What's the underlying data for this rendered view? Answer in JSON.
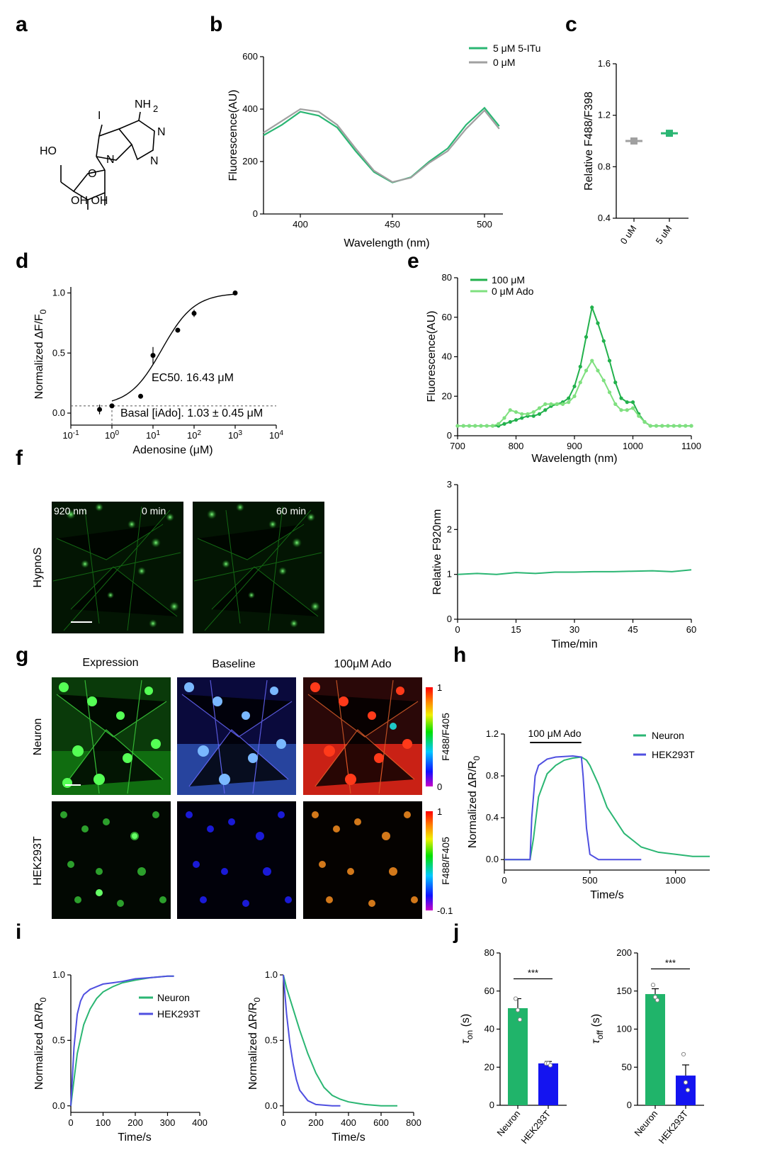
{
  "panel_labels": {
    "a": "a",
    "b": "b",
    "c": "c",
    "d": "d",
    "e": "e",
    "f": "f",
    "g": "g",
    "h": "h",
    "i": "i",
    "j": "j"
  },
  "colors": {
    "green": "#2bb673",
    "green_bright": "#22b14c",
    "green_light": "#7fe07f",
    "gray": "#a0a0a0",
    "blue": "#4f4fe0",
    "blue_bar": "#1414f0",
    "bar_green": "#20b46a"
  },
  "structure": {
    "labels": {
      "i": "I",
      "nh2": "NH",
      "nh2_sub": "2",
      "n1": "N",
      "n2": "N",
      "n3": "N",
      "ho": "HO",
      "o": "O",
      "ohoh": "OH OH"
    }
  },
  "chart_data": [
    {
      "panel": "b",
      "type": "line",
      "xlabel": "Wavelength (nm)",
      "ylabel": "Fluorescence(AU)",
      "xlim": [
        380,
        510
      ],
      "ylim": [
        0,
        600
      ],
      "x_ticks": [
        400,
        450,
        500
      ],
      "y_ticks": [
        0,
        200,
        400,
        600
      ],
      "legend_placement": "top-right",
      "series": [
        {
          "name": "5  μM 5-ITu",
          "color": "#2bb673",
          "x": [
            380,
            390,
            400,
            410,
            420,
            430,
            440,
            450,
            460,
            470,
            480,
            490,
            500,
            508
          ],
          "values": [
            300,
            340,
            390,
            375,
            330,
            240,
            160,
            120,
            140,
            200,
            250,
            340,
            405,
            335
          ]
        },
        {
          "name": "0   μM",
          "color": "#a0a0a0",
          "x": [
            380,
            390,
            400,
            410,
            420,
            430,
            440,
            450,
            460,
            470,
            480,
            490,
            500,
            508
          ],
          "values": [
            310,
            355,
            400,
            390,
            340,
            250,
            165,
            122,
            138,
            195,
            240,
            325,
            395,
            325
          ]
        }
      ]
    },
    {
      "panel": "c",
      "type": "scatter",
      "ylabel": "Relative F488/F398",
      "ylim": [
        0.4,
        1.6
      ],
      "y_ticks": [
        0.4,
        0.8,
        1.2,
        1.6
      ],
      "categories": [
        "0 uM",
        "5 uM"
      ],
      "series": [
        {
          "values": [
            1.0,
            1.06
          ],
          "colors": [
            "#a0a0a0",
            "#2bb673"
          ]
        }
      ]
    },
    {
      "panel": "d",
      "type": "scatter",
      "xlabel": "Adenosine (μM)",
      "ylabel": "Normalized ΔF/F",
      "ylabel_sub": "0",
      "x_scale": "log",
      "xlim": [
        0.1,
        10000
      ],
      "x_ticks": [
        {
          "base": "10",
          "exp": "-1"
        },
        {
          "base": "10",
          "exp": "0"
        },
        {
          "base": "10",
          "exp": "1"
        },
        {
          "base": "10",
          "exp": "2"
        },
        {
          "base": "10",
          "exp": "3"
        },
        {
          "base": "10",
          "exp": "4"
        }
      ],
      "ylim": [
        -0.1,
        1.05
      ],
      "y_ticks": [
        0.0,
        0.5,
        1.0
      ],
      "x": [
        0.5,
        1,
        5,
        10,
        40,
        100,
        1000
      ],
      "values": [
        0.03,
        0.06,
        0.14,
        0.48,
        0.69,
        0.83,
        1.0
      ],
      "errors": [
        0.04,
        0.01,
        0.01,
        0.07,
        0.02,
        0.03,
        0.0
      ],
      "ec50": 16.43,
      "annotations": [
        "EC50. 16.43 μM",
        "Basal [iAdo]. 1.03 ± 0.45 μM"
      ]
    },
    {
      "panel": "e",
      "type": "line",
      "xlabel": "Wavelength (nm)",
      "ylabel": "Fluorescence(AU)",
      "xlim": [
        700,
        1100
      ],
      "ylim": [
        0,
        80
      ],
      "x_ticks": [
        700,
        800,
        900,
        1000,
        1100
      ],
      "y_ticks": [
        0,
        20,
        40,
        60,
        80
      ],
      "legend_placement": "top-left",
      "x": [
        700,
        710,
        720,
        730,
        740,
        750,
        760,
        770,
        780,
        790,
        800,
        810,
        820,
        830,
        840,
        850,
        860,
        870,
        880,
        890,
        900,
        910,
        920,
        930,
        940,
        950,
        960,
        970,
        980,
        990,
        1000,
        1010,
        1020,
        1030,
        1040,
        1050,
        1060,
        1070,
        1080,
        1090,
        1100
      ],
      "series": [
        {
          "name": "100 μM",
          "color": "#22b14c",
          "values": [
            5,
            5,
            5,
            5,
            5,
            5,
            5,
            5,
            6,
            7,
            8,
            9,
            10,
            10,
            11,
            13,
            15,
            16,
            17,
            19,
            25,
            35,
            50,
            65,
            57,
            48,
            38,
            27,
            19,
            17,
            17,
            11,
            7,
            5,
            5,
            5,
            5,
            5,
            5,
            5,
            5
          ]
        },
        {
          "name": "0     μM Ado",
          "color": "#7fe07f",
          "values": [
            5,
            5,
            5,
            5,
            5,
            5,
            5,
            6,
            9,
            13,
            12,
            11,
            11,
            12,
            14,
            16,
            16,
            16,
            16,
            17,
            20,
            27,
            33,
            38,
            33,
            28,
            22,
            16,
            13,
            13,
            14,
            10,
            7,
            5,
            5,
            5,
            5,
            5,
            5,
            5,
            5
          ]
        }
      ]
    },
    {
      "panel": "f",
      "type": "line",
      "xlabel": "Time/min",
      "ylabel": "Relative F920nm",
      "xlim": [
        0,
        60
      ],
      "ylim": [
        0,
        3
      ],
      "x_ticks": [
        0,
        15,
        30,
        45,
        60
      ],
      "y_ticks": [
        0,
        1,
        2,
        3
      ],
      "x": [
        0,
        5,
        10,
        15,
        20,
        25,
        30,
        35,
        40,
        45,
        50,
        55,
        60
      ],
      "values": [
        1.0,
        1.02,
        1.0,
        1.04,
        1.02,
        1.05,
        1.05,
        1.06,
        1.06,
        1.07,
        1.08,
        1.06,
        1.1
      ],
      "color": "#2bb673"
    },
    {
      "panel": "h",
      "type": "line",
      "xlabel": "Time/s",
      "ylabel": "Normalized ΔR/R",
      "ylabel_sub": "0",
      "xlim": [
        0,
        1200
      ],
      "ylim": [
        -0.1,
        1.2
      ],
      "x_ticks": [
        0,
        500,
        1000
      ],
      "y_ticks": [
        0.0,
        0.4,
        0.8,
        1.2
      ],
      "stimulus": "100 μM Ado",
      "stimulus_range": [
        150,
        450
      ],
      "legend_placement": "top-right",
      "series": [
        {
          "name": "Neuron",
          "color": "#2bb673",
          "x": [
            0,
            100,
            150,
            170,
            200,
            250,
            300,
            350,
            400,
            450,
            480,
            500,
            550,
            600,
            700,
            800,
            900,
            1000,
            1100,
            1200
          ],
          "values": [
            0.0,
            0.0,
            0.0,
            0.2,
            0.6,
            0.82,
            0.9,
            0.95,
            0.97,
            0.98,
            0.95,
            0.9,
            0.72,
            0.5,
            0.25,
            0.12,
            0.07,
            0.05,
            0.03,
            0.03
          ]
        },
        {
          "name": "HEK293T",
          "color": "#4f4fe0",
          "x": [
            0,
            100,
            150,
            160,
            180,
            200,
            250,
            300,
            400,
            450,
            460,
            480,
            500,
            550,
            600,
            700,
            800
          ],
          "values": [
            0.0,
            0.0,
            0.0,
            0.4,
            0.8,
            0.9,
            0.96,
            0.98,
            0.99,
            0.98,
            0.8,
            0.3,
            0.05,
            0.0,
            0.0,
            0.0,
            0.0
          ]
        }
      ]
    },
    {
      "panel": "i_left",
      "type": "line",
      "xlabel": "Time/s",
      "ylabel": "Normalized ΔR/R",
      "ylabel_sub": "0",
      "xlim": [
        0,
        400
      ],
      "ylim": [
        -0.05,
        1.0
      ],
      "x_ticks": [
        0,
        100,
        200,
        300,
        400
      ],
      "y_ticks": [
        0.0,
        0.5,
        1.0
      ],
      "legend_placement": "center-right",
      "series": [
        {
          "name": "Neuron",
          "color": "#2bb673",
          "x": [
            0,
            10,
            20,
            40,
            60,
            80,
            100,
            130,
            160,
            200,
            250,
            300,
            320
          ],
          "values": [
            0.0,
            0.2,
            0.4,
            0.62,
            0.74,
            0.82,
            0.87,
            0.91,
            0.94,
            0.96,
            0.98,
            0.99,
            0.99
          ]
        },
        {
          "name": "HEK293T",
          "color": "#4f4fe0",
          "x": [
            0,
            10,
            20,
            30,
            40,
            60,
            80,
            100,
            130,
            160,
            200,
            250,
            300,
            320
          ],
          "values": [
            0.0,
            0.45,
            0.7,
            0.8,
            0.85,
            0.89,
            0.91,
            0.93,
            0.94,
            0.95,
            0.97,
            0.98,
            0.99,
            0.99
          ]
        }
      ]
    },
    {
      "panel": "i_right",
      "type": "line",
      "xlabel": "Time/s",
      "ylim": [
        -0.05,
        1.0
      ],
      "ylabel": "Normalized ΔR/R",
      "ylabel_sub": "0",
      "xlim": [
        0,
        800
      ],
      "x_ticks": [
        0,
        200,
        400,
        600,
        800
      ],
      "y_ticks": [
        0.0,
        0.5,
        1.0
      ],
      "series": [
        {
          "name": "Neuron",
          "color": "#2bb673",
          "x": [
            0,
            20,
            50,
            100,
            150,
            200,
            250,
            300,
            350,
            400,
            500,
            600,
            700
          ],
          "values": [
            1.0,
            0.9,
            0.78,
            0.58,
            0.4,
            0.25,
            0.14,
            0.08,
            0.05,
            0.03,
            0.01,
            0.0,
            0.0
          ]
        },
        {
          "name": "HEK293T",
          "color": "#4f4fe0",
          "x": [
            0,
            10,
            20,
            40,
            60,
            80,
            100,
            150,
            200,
            300,
            350
          ],
          "values": [
            1.0,
            0.85,
            0.7,
            0.48,
            0.32,
            0.2,
            0.12,
            0.04,
            0.01,
            0.0,
            0.0
          ]
        }
      ]
    },
    {
      "panel": "j_left",
      "type": "bar",
      "ylabel": "τ",
      "ylabel_sub": "on",
      "ylabel_unit": " (s)",
      "ylim": [
        0,
        80
      ],
      "y_ticks": [
        0,
        20,
        40,
        60,
        80
      ],
      "categories": [
        "Neuron",
        "HEK293T"
      ],
      "values": [
        51,
        22
      ],
      "errors": [
        5,
        1
      ],
      "points": [
        [
          56,
          50,
          45
        ],
        [
          22,
          22,
          21
        ]
      ],
      "significance": "***"
    },
    {
      "panel": "j_right",
      "type": "bar",
      "ylabel": "τ",
      "ylabel_sub": "off",
      "ylabel_unit": " (s)",
      "ylim": [
        0,
        200
      ],
      "y_ticks": [
        0,
        50,
        100,
        150,
        200
      ],
      "categories": [
        "Neuron",
        "HEK293T"
      ],
      "values": [
        146,
        39
      ],
      "errors": [
        7,
        14
      ],
      "points": [
        [
          158,
          142,
          138
        ],
        [
          67,
          30,
          20
        ]
      ],
      "significance": "***"
    }
  ],
  "images": {
    "f": {
      "wavelength": "920 nm",
      "t0": "0 min",
      "t60": "60 min",
      "row_label": "HypnoS"
    },
    "g": {
      "col_labels": [
        "Expression",
        "Baseline",
        "100μM Ado"
      ],
      "row_labels": [
        "Neuron",
        "HEK293T"
      ],
      "scale1": {
        "max": "1",
        "min": "0",
        "label": "F488/F405"
      },
      "scale2": {
        "max": "1",
        "min": "-0.1",
        "label": "F488/F405"
      }
    }
  }
}
